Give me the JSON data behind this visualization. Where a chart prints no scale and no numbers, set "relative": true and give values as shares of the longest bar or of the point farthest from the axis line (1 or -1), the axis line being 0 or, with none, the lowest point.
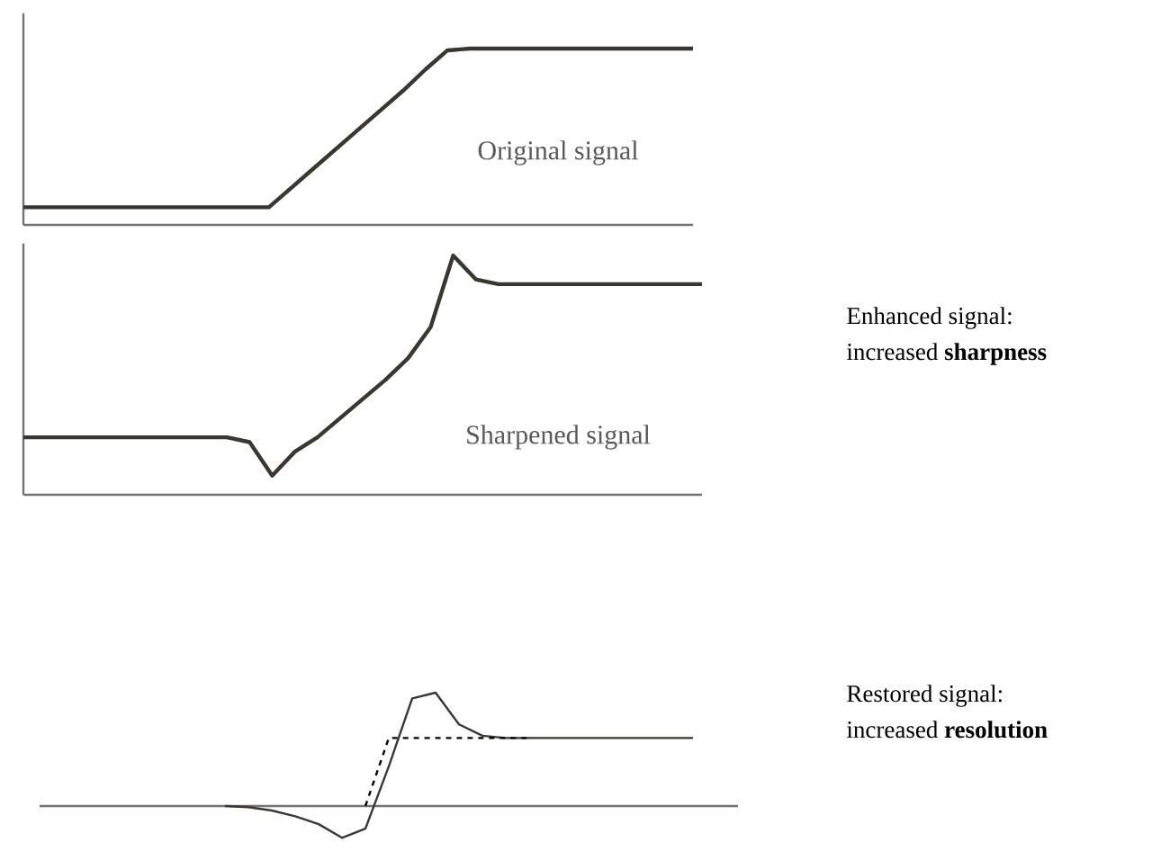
{
  "chart_data": [
    {
      "type": "line",
      "relative": true,
      "categories": [
        null,
        null,
        null,
        null,
        null,
        null,
        null,
        null,
        null,
        null,
        null,
        null,
        null,
        null,
        null,
        null,
        null,
        null,
        null,
        null,
        null,
        null,
        null,
        null,
        null,
        null,
        null,
        null,
        null,
        null,
        null
      ],
      "series": [
        {
          "name": "Original signal",
          "color": "#3a3632",
          "values": [
            0.1,
            0.1,
            0.1,
            0.1,
            0.1,
            0.1,
            0.1,
            0.1,
            0.1,
            0.1,
            0.1,
            0.1,
            0.21,
            0.32,
            0.43,
            0.54,
            0.65,
            0.76,
            0.88,
            0.99,
            1.0,
            1.0,
            1.0,
            1.0,
            1.0,
            1.0,
            1.0,
            1.0,
            1.0,
            1.0,
            1.0
          ]
        }
      ]
    },
    {
      "type": "line",
      "relative": true,
      "categories": [
        null,
        null,
        null,
        null,
        null,
        null,
        null,
        null,
        null,
        null,
        null,
        null,
        null,
        null,
        null,
        null,
        null,
        null,
        null,
        null,
        null,
        null,
        null,
        null,
        null,
        null,
        null,
        null,
        null,
        null,
        null
      ],
      "annotations": [
        "Enhanced signal:",
        "increased **sharpness**"
      ],
      "series": [
        {
          "name": "Sharpened signal",
          "color": "#3a3632",
          "values": [
            0.24,
            0.24,
            0.24,
            0.24,
            0.24,
            0.24,
            0.24,
            0.24,
            0.24,
            0.24,
            0.22,
            0.08,
            0.18,
            0.24,
            0.32,
            0.4,
            0.48,
            0.57,
            0.7,
            1.0,
            0.9,
            0.88,
            0.88,
            0.88,
            0.88,
            0.88,
            0.88,
            0.88,
            0.88,
            0.88,
            0.88
          ]
        }
      ]
    },
    {
      "type": "line",
      "relative": true,
      "categories": [
        null,
        null,
        null,
        null,
        null,
        null,
        null,
        null,
        null,
        null,
        null,
        null,
        null,
        null,
        null,
        null,
        null,
        null,
        null,
        null,
        null
      ],
      "annotations": [
        "Restored signal:",
        "increased **resolution**"
      ],
      "series": [
        {
          "color": "#3a3632",
          "values": [
            0,
            -0.01,
            -0.04,
            -0.09,
            -0.16,
            -0.28,
            -0.2,
            0.35,
            0.95,
            1.0,
            0.72,
            0.62,
            0.6,
            0.6,
            0.6,
            0.6,
            0.6,
            0.6,
            0.6,
            0.6,
            0.6
          ]
        },
        {
          "line_style": "dashed",
          "color": "#000000",
          "values": [
            null,
            null,
            null,
            null,
            null,
            null,
            0,
            0.6,
            0.6,
            0.6,
            0.6,
            0.6,
            0.6,
            0.6,
            null,
            null,
            null,
            null,
            null,
            null,
            null
          ]
        }
      ]
    }
  ]
}
